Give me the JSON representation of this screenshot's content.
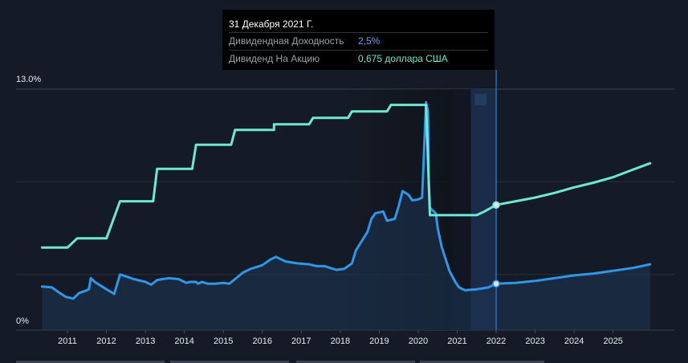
{
  "tooltip": {
    "date": "31 Декабря 2021 Г.",
    "rows": [
      {
        "label": "Дивидендная Доходность",
        "value": "2,5%",
        "color": "#58a6ff"
      },
      {
        "label": "Дивиденд На Акцию",
        "value": "0,675 доллара США",
        "color": "#6ee7d3"
      }
    ]
  },
  "chart_data": {
    "type": "line",
    "ylim": [
      0,
      13.0
    ],
    "y_tick_labels": [
      "13.0%",
      "0%"
    ],
    "x_tick_labels": [
      "2011",
      "2012",
      "2013",
      "2014",
      "2015",
      "2016",
      "2017",
      "2018",
      "2019",
      "2020",
      "2021",
      "2022",
      "2023",
      "2024",
      "2025"
    ],
    "hover_x": 2022.0,
    "forecast_start": 2022.0,
    "grid": true,
    "colors": {
      "yield": "#2f96e8",
      "dps": "#6ee7d3",
      "hover_line": "#2f7de0"
    },
    "series": [
      {
        "key": "yield",
        "points": [
          [
            2010.35,
            2.35
          ],
          [
            2010.6,
            2.3
          ],
          [
            2010.8,
            2.0
          ],
          [
            2010.95,
            1.8
          ],
          [
            2011.15,
            1.7
          ],
          [
            2011.3,
            2.0
          ],
          [
            2011.5,
            2.15
          ],
          [
            2011.55,
            2.2
          ],
          [
            2011.6,
            2.8
          ],
          [
            2011.7,
            2.6
          ],
          [
            2012.0,
            2.2
          ],
          [
            2012.2,
            1.95
          ],
          [
            2012.35,
            3.0
          ],
          [
            2012.5,
            2.9
          ],
          [
            2012.7,
            2.75
          ],
          [
            2013.0,
            2.6
          ],
          [
            2013.15,
            2.45
          ],
          [
            2013.3,
            2.7
          ],
          [
            2013.6,
            2.8
          ],
          [
            2013.85,
            2.75
          ],
          [
            2014.0,
            2.6
          ],
          [
            2014.05,
            2.55
          ],
          [
            2014.15,
            2.6
          ],
          [
            2014.3,
            2.6
          ],
          [
            2014.35,
            2.5
          ],
          [
            2014.45,
            2.6
          ],
          [
            2014.6,
            2.5
          ],
          [
            2014.8,
            2.5
          ],
          [
            2015.0,
            2.55
          ],
          [
            2015.15,
            2.5
          ],
          [
            2015.3,
            2.75
          ],
          [
            2015.5,
            3.1
          ],
          [
            2015.7,
            3.3
          ],
          [
            2016.0,
            3.5
          ],
          [
            2016.2,
            3.8
          ],
          [
            2016.35,
            3.95
          ],
          [
            2016.5,
            3.8
          ],
          [
            2016.6,
            3.7
          ],
          [
            2016.9,
            3.6
          ],
          [
            2017.2,
            3.55
          ],
          [
            2017.4,
            3.45
          ],
          [
            2017.6,
            3.45
          ],
          [
            2017.9,
            3.25
          ],
          [
            2018.1,
            3.3
          ],
          [
            2018.2,
            3.45
          ],
          [
            2018.3,
            3.6
          ],
          [
            2018.4,
            4.3
          ],
          [
            2018.55,
            4.8
          ],
          [
            2018.7,
            5.3
          ],
          [
            2018.8,
            6.0
          ],
          [
            2018.9,
            6.3
          ],
          [
            2019.1,
            6.4
          ],
          [
            2019.2,
            5.9
          ],
          [
            2019.4,
            6.0
          ],
          [
            2019.5,
            6.7
          ],
          [
            2019.6,
            7.5
          ],
          [
            2019.75,
            7.3
          ],
          [
            2019.85,
            7.0
          ],
          [
            2020.0,
            7.05
          ],
          [
            2020.1,
            7.15
          ],
          [
            2020.2,
            12.3
          ],
          [
            2020.25,
            11.8
          ],
          [
            2020.27,
            8.0
          ],
          [
            2020.3,
            6.6
          ],
          [
            2020.45,
            6.3
          ],
          [
            2020.5,
            5.5
          ],
          [
            2020.6,
            4.5
          ],
          [
            2020.8,
            3.2
          ],
          [
            2020.95,
            2.6
          ],
          [
            2021.05,
            2.3
          ],
          [
            2021.2,
            2.15
          ],
          [
            2021.5,
            2.2
          ],
          [
            2021.8,
            2.3
          ],
          [
            2022.0,
            2.5
          ],
          [
            2022.5,
            2.55
          ],
          [
            2023.0,
            2.65
          ],
          [
            2023.5,
            2.8
          ],
          [
            2024.0,
            2.95
          ],
          [
            2024.5,
            3.05
          ],
          [
            2025.0,
            3.2
          ],
          [
            2025.5,
            3.35
          ],
          [
            2025.95,
            3.55
          ]
        ]
      },
      {
        "key": "dps",
        "points": [
          [
            2010.35,
            4.45
          ],
          [
            2011.0,
            4.45
          ],
          [
            2011.25,
            4.95
          ],
          [
            2012.0,
            4.95
          ],
          [
            2012.35,
            6.95
          ],
          [
            2013.2,
            6.95
          ],
          [
            2013.3,
            8.7
          ],
          [
            2014.2,
            8.7
          ],
          [
            2014.3,
            10.0
          ],
          [
            2015.2,
            10.0
          ],
          [
            2015.3,
            10.8
          ],
          [
            2016.3,
            10.8
          ],
          [
            2016.3,
            11.1
          ],
          [
            2017.2,
            11.1
          ],
          [
            2017.3,
            11.45
          ],
          [
            2018.2,
            11.45
          ],
          [
            2018.3,
            11.8
          ],
          [
            2019.2,
            11.8
          ],
          [
            2019.3,
            12.15
          ],
          [
            2020.2,
            12.15
          ],
          [
            2020.3,
            6.2
          ],
          [
            2021.5,
            6.2
          ],
          [
            2021.7,
            6.4
          ],
          [
            2022.0,
            6.75
          ],
          [
            2022.5,
            6.95
          ],
          [
            2023.0,
            7.15
          ],
          [
            2023.5,
            7.4
          ],
          [
            2024.0,
            7.7
          ],
          [
            2024.5,
            7.95
          ],
          [
            2025.0,
            8.25
          ],
          [
            2025.5,
            8.65
          ],
          [
            2025.95,
            9.0
          ]
        ]
      }
    ]
  }
}
